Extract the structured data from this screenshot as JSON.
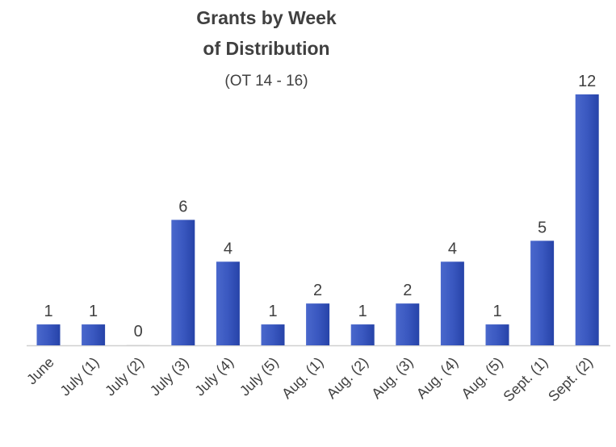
{
  "chart_data": {
    "type": "bar",
    "title_lines": [
      "Grants by Week",
      "of Distribution"
    ],
    "subtitle": "(OT 14 - 16)",
    "categories": [
      "June",
      "July (1)",
      "July (2)",
      "July (3)",
      "July (4)",
      "July (5)",
      "Aug. (1)",
      "Aug. (2)",
      "Aug. (3)",
      "Aug. (4)",
      "Aug. (5)",
      "Sept. (1)",
      "Sept. (2)"
    ],
    "values": [
      1,
      1,
      0,
      6,
      4,
      1,
      2,
      1,
      2,
      4,
      1,
      5,
      12
    ],
    "xlabel": "",
    "ylabel": "",
    "ylim": [
      0,
      12
    ],
    "grid": false,
    "legend": "none",
    "bar_color": "#3a58c0",
    "bar_color_dark": "#2643a8"
  }
}
